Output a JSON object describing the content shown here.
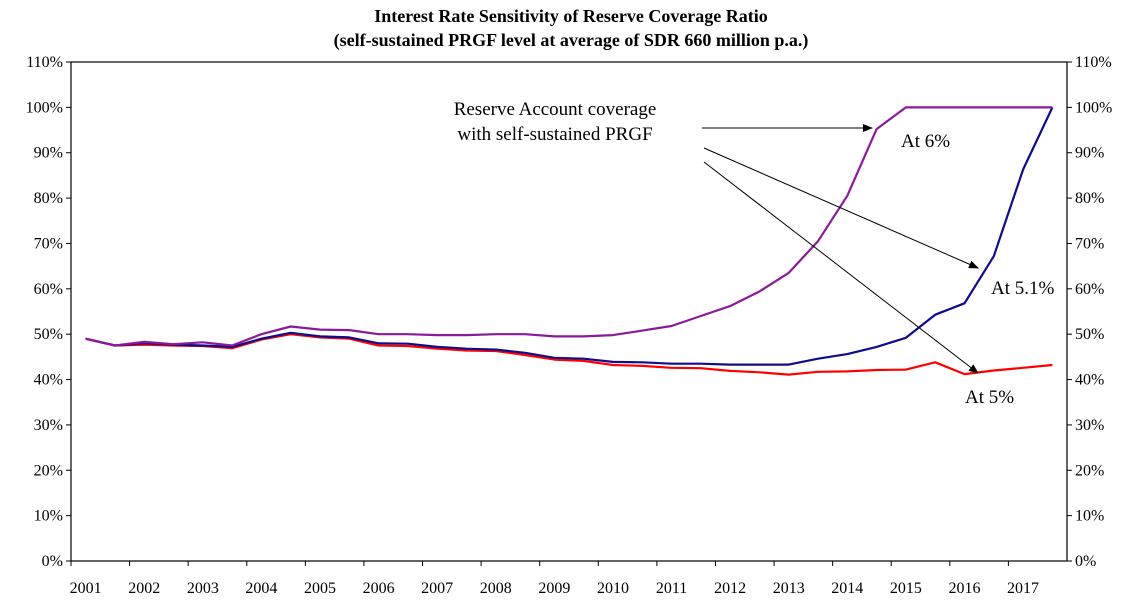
{
  "chart_data": {
    "type": "line",
    "title": "Interest Rate Sensitivity of Reserve Coverage Ratio",
    "subtitle": "(self-sustained PRGF level at average of SDR 660 million p.a.)",
    "xlabel": "",
    "ylabel": "",
    "x_tick_labels": [
      "2001",
      "2002",
      "2003",
      "2004",
      "2005",
      "2006",
      "2007",
      "2008",
      "2009",
      "2010",
      "2011",
      "2012",
      "2013",
      "2014",
      "2015",
      "2016",
      "2017"
    ],
    "y_tick_labels": [
      "0%",
      "10%",
      "20%",
      "30%",
      "40%",
      "50%",
      "60%",
      "70%",
      "80%",
      "90%",
      "100%",
      "110%"
    ],
    "ylim": [
      0,
      110
    ],
    "xlim": [
      2001,
      2018
    ],
    "grid": false,
    "legend": "none",
    "x": [
      2001.25,
      2001.75,
      2002.25,
      2002.75,
      2003.25,
      2003.75,
      2004.25,
      2004.75,
      2005.25,
      2005.75,
      2006.25,
      2006.75,
      2007.25,
      2007.75,
      2008.25,
      2008.75,
      2009.25,
      2009.75,
      2010.25,
      2010.75,
      2011.25,
      2011.75,
      2012.25,
      2012.75,
      2013.25,
      2013.75,
      2014.25,
      2014.75,
      2015.25,
      2015.75,
      2016.25,
      2016.75,
      2017.25,
      2017.75
    ],
    "series": [
      {
        "name": "At 6%",
        "color": "#8B1A9A",
        "values": [
          49,
          47.5,
          48.3,
          47.8,
          48.2,
          47.5,
          50,
          51.7,
          51,
          50.9,
          50,
          50,
          49.8,
          49.8,
          50,
          50,
          49.5,
          49.5,
          49.8,
          50.8,
          51.8,
          54,
          56.2,
          59.4,
          63.5,
          70.5,
          80.5,
          95.2,
          100,
          100,
          100,
          100,
          100,
          100
        ]
      },
      {
        "name": "At 5.1%",
        "color": "#0D0D8C",
        "values": [
          49,
          47.5,
          48,
          47.7,
          47.5,
          47.2,
          49,
          50.3,
          49.5,
          49.3,
          48,
          47.9,
          47.2,
          46.8,
          46.6,
          45.9,
          44.8,
          44.6,
          43.9,
          43.8,
          43.5,
          43.5,
          43.3,
          43.3,
          43.3,
          44.6,
          45.6,
          47.2,
          49.2,
          54.3,
          56.8,
          67.2,
          86.3,
          100
        ]
      },
      {
        "name": "At 5%",
        "color": "#FF0000",
        "values": [
          49,
          47.5,
          47.7,
          47.5,
          47.4,
          46.9,
          48.8,
          50,
          49.3,
          49,
          47.5,
          47.4,
          46.8,
          46.4,
          46.3,
          45.4,
          44.4,
          44.1,
          43.2,
          43,
          42.6,
          42.5,
          41.9,
          41.6,
          41.1,
          41.7,
          41.8,
          42.1,
          42.2,
          43.8,
          41.2,
          42,
          42.6,
          43.2
        ]
      }
    ],
    "annotations": {
      "callout_line1": "Reserve Account coverage",
      "callout_line2": "with self-sustained PRGF",
      "label_6": "At 6%",
      "label_51": "At 5.1%",
      "label_5": "At 5%"
    }
  }
}
